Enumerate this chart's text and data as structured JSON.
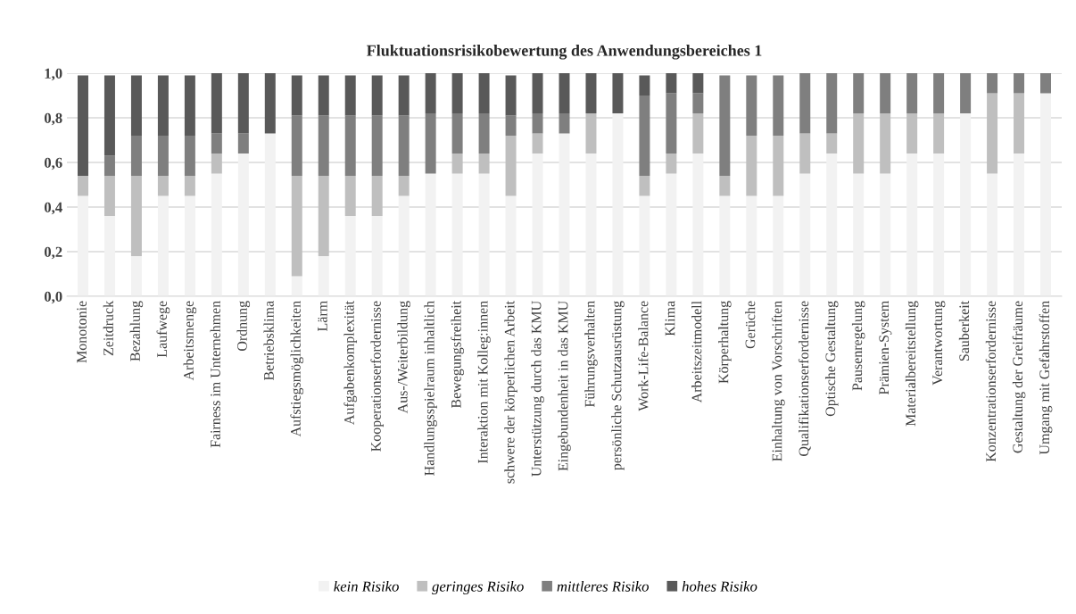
{
  "chart_data": {
    "type": "bar",
    "stacked": true,
    "title": "Fluktuationsrisikobewertung des Anwendungsbereiches 1",
    "categories": [
      "Monotonie",
      "Zeitdruck",
      "Bezahlung",
      "Laufwege",
      "Arbeitsmenge",
      "Fairness im Unternehmen",
      "Ordnung",
      "Betriebsklima",
      "Aufstiegsmöglichkeiten",
      "Lärm",
      "Aufgabenkomplexität",
      "Kooperationserfordernisse",
      "Aus-/Weiterbildung",
      "Handlungsspielraum inhaltlich",
      "Bewegungsfreiheit",
      "Interaktion mit Kolleg:innen",
      "schwere der körperlichen Arbeit",
      "Unterstützung durch das KMU",
      "Eingebundenheit in das KMU",
      "Führungsverhalten",
      "persönliche Schutzausrüstung",
      "Work-Life-Balance",
      "Klima",
      "Arbeitszeitmodell",
      "Körperhaltung",
      "Gerüche",
      "Einhaltung von Vorschriften",
      "Qualifikationserfordernisse",
      "Optische Gestaltung",
      "Pausenregelung",
      "Prämien-System",
      "Materialbereitstellung",
      "Verantwortung",
      "Sauberkeit",
      "Konzentrationserfordernisse",
      "Gestaltung der Greifräume",
      "Umgang mit Gefahrstoffen"
    ],
    "series": [
      {
        "name": "kein Risiko",
        "color": "#f2f2f2",
        "values": [
          0.45,
          0.36,
          0.18,
          0.45,
          0.45,
          0.55,
          0.64,
          0.73,
          0.09,
          0.18,
          0.36,
          0.36,
          0.45,
          0.55,
          0.55,
          0.55,
          0.45,
          0.64,
          0.73,
          0.64,
          0.82,
          0.45,
          0.55,
          0.64,
          0.45,
          0.45,
          0.45,
          0.55,
          0.64,
          0.55,
          0.55,
          0.64,
          0.64,
          0.82,
          0.55,
          0.64,
          0.91
        ]
      },
      {
        "name": "geringes Risiko",
        "color": "#bfbfbf",
        "values": [
          0.09,
          0.18,
          0.36,
          0.09,
          0.09,
          0.09,
          0,
          0,
          0.45,
          0.36,
          0.18,
          0.18,
          0.09,
          0,
          0.09,
          0.09,
          0.27,
          0.09,
          0,
          0.18,
          0,
          0.09,
          0.09,
          0.18,
          0.09,
          0.27,
          0.27,
          0.18,
          0.09,
          0.27,
          0.27,
          0.18,
          0.18,
          0,
          0.36,
          0.27,
          0
        ]
      },
      {
        "name": "mittleres Risiko",
        "color": "#7f7f7f",
        "values": [
          0,
          0.09,
          0.18,
          0.18,
          0.18,
          0.09,
          0.09,
          0,
          0.27,
          0.27,
          0.27,
          0.27,
          0.27,
          0.27,
          0.18,
          0.18,
          0.09,
          0.09,
          0.09,
          0,
          0,
          0.36,
          0.27,
          0.09,
          0.45,
          0.27,
          0.27,
          0.27,
          0.27,
          0.18,
          0.18,
          0.18,
          0.18,
          0.18,
          0.09,
          0.09,
          0.09
        ]
      },
      {
        "name": "hohes Risiko",
        "color": "#595959",
        "values": [
          0.45,
          0.36,
          0.27,
          0.27,
          0.27,
          0.27,
          0.27,
          0.27,
          0.18,
          0.18,
          0.18,
          0.18,
          0.18,
          0.18,
          0.18,
          0.18,
          0.18,
          0.18,
          0.18,
          0.18,
          0.18,
          0.09,
          0.09,
          0.09,
          0,
          0,
          0,
          0,
          0,
          0,
          0,
          0,
          0,
          0,
          0,
          0,
          0
        ]
      }
    ],
    "ylim": [
      0,
      1.0
    ],
    "yticks": [
      {
        "value": 0,
        "label": "0,0"
      },
      {
        "value": 0.2,
        "label": "0,2"
      },
      {
        "value": 0.4,
        "label": "0,4"
      },
      {
        "value": 0.6,
        "label": "0,6"
      },
      {
        "value": 0.8,
        "label": "0,8"
      },
      {
        "value": 1.0,
        "label": "1,0"
      }
    ],
    "grid": "y",
    "legend": "bottom"
  }
}
